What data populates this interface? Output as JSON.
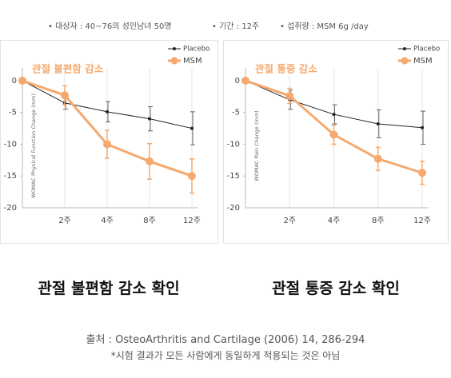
{
  "header": {
    "notes": [
      "• 대상자 : 40~76의 성인남녀 50명",
      "• 기간 : 12주",
      "• 섭취량 : MSM 6g /day"
    ]
  },
  "chart_data": [
    {
      "type": "line",
      "title": "관절 불편함 감소",
      "y_label": "WOMAC Physical Function Change (mm)",
      "categories": [
        null,
        "2주",
        "4주",
        "8주",
        "12주"
      ],
      "ylim": [
        -20,
        2
      ],
      "yticks": [
        0,
        -5,
        -10,
        -15,
        -20
      ],
      "grid": true,
      "legend": "top-right",
      "series": [
        {
          "name": "Placebo",
          "color": "#222222",
          "values": [
            0,
            -3.5,
            -4.9,
            -6,
            -7.5
          ],
          "errors": [
            null,
            1,
            1.6,
            1.9,
            2.6
          ]
        },
        {
          "name": "MSM",
          "color": "#f5a96e",
          "values": [
            0,
            -2.3,
            -10,
            -12.7,
            -15
          ],
          "errors": [
            null,
            1.5,
            2.2,
            2.8,
            2.7
          ]
        }
      ]
    },
    {
      "type": "line",
      "title": "관절 통증 감소",
      "y_label": "WOMAC Pain Change (mm)",
      "categories": [
        null,
        "2주",
        "4주",
        "8주",
        "12주"
      ],
      "ylim": [
        -20,
        2
      ],
      "yticks": [
        0,
        -5,
        -10,
        -15,
        -20
      ],
      "grid": true,
      "legend": "top-right",
      "series": [
        {
          "name": "Placebo",
          "color": "#222222",
          "values": [
            0,
            -3,
            -5.3,
            -6.8,
            -7.4
          ],
          "errors": [
            null,
            1.5,
            1.5,
            2.2,
            2.6
          ]
        },
        {
          "name": "MSM",
          "color": "#f5a96e",
          "values": [
            0,
            -2.4,
            -8.5,
            -12.3,
            -14.5
          ],
          "errors": [
            null,
            1.2,
            1.5,
            1.8,
            1.8
          ]
        }
      ]
    }
  ],
  "footer": {
    "captions": [
      "관절 불편함 감소 확인",
      "관절 통증 감소 확인"
    ],
    "source": "출처 : OsteoArthritis and Cartilage (2006) 14, 286-294",
    "disclaimer": "*시험 결과가 모든 사람에게 동일하게 적용되는 것은 아님"
  }
}
